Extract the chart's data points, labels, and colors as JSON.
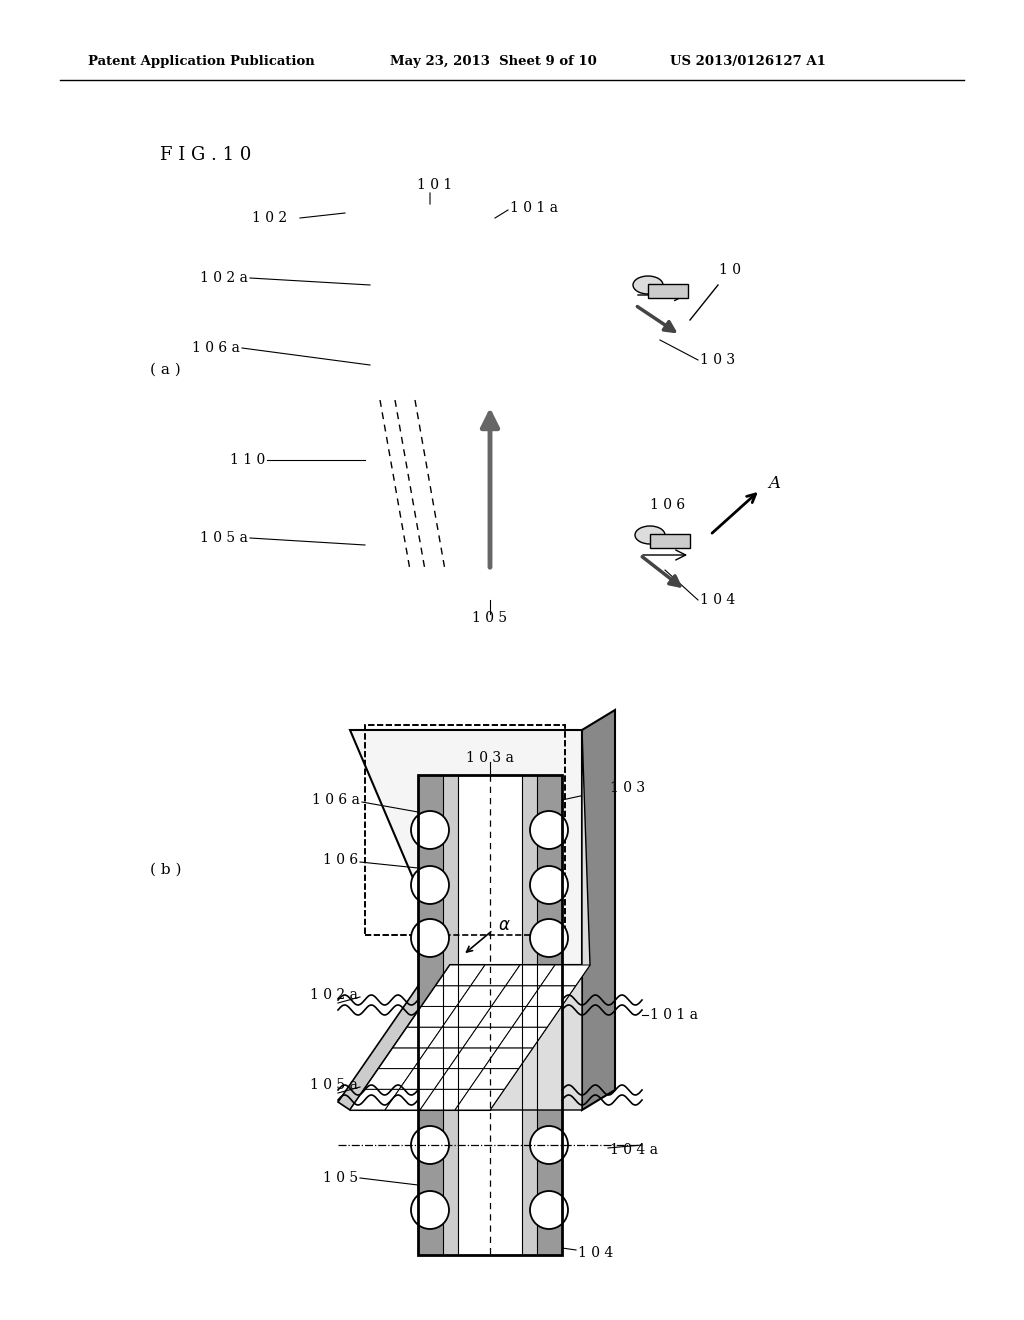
{
  "header_left": "Patent Application Publication",
  "header_mid": "May 23, 2013  Sheet 9 of 10",
  "header_right": "US 2013/0126127 A1",
  "fig_label": "FIG. 10",
  "bg_color": "#ffffff",
  "text_color": "#000000",
  "gray_dark": "#999999",
  "gray_med": "#bbbbbb",
  "gray_light": "#dddddd"
}
